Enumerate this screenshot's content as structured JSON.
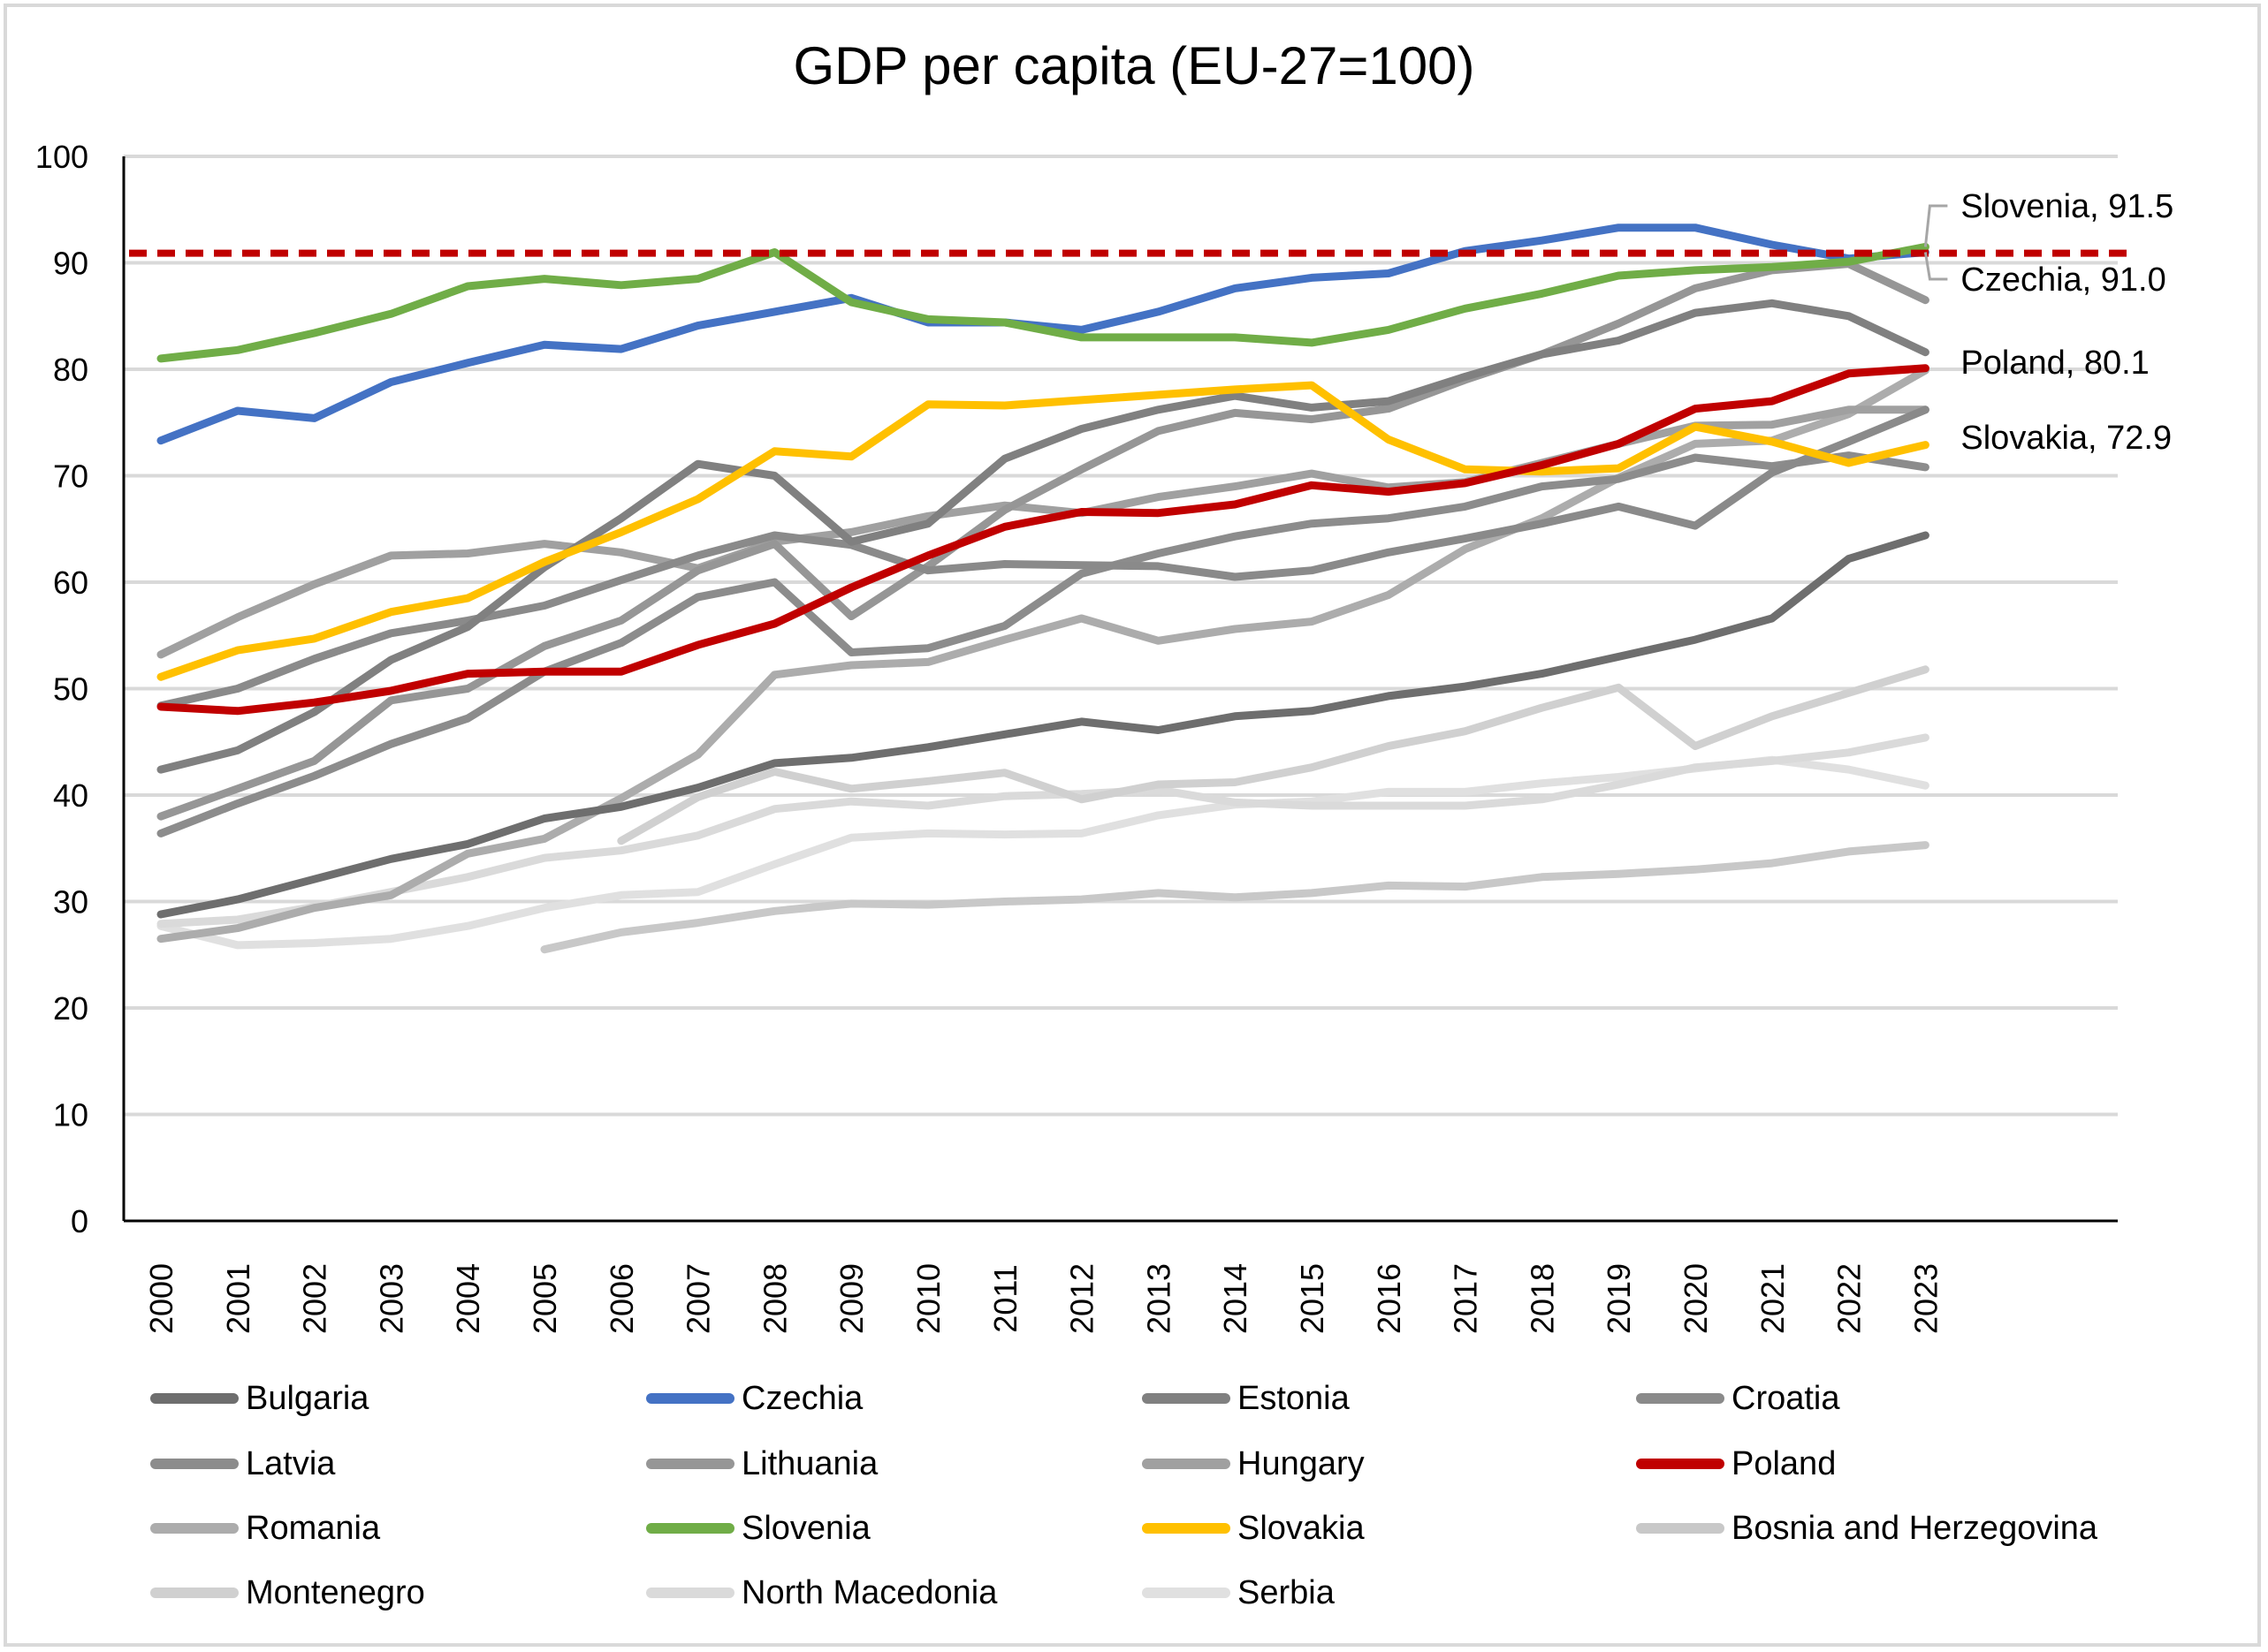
{
  "chart_data": {
    "type": "line",
    "title": "GDP per capita (EU-27=100)",
    "xlabel": "",
    "ylabel": "",
    "ylim": [
      0,
      100
    ],
    "yticks": [
      0,
      10,
      20,
      30,
      40,
      50,
      60,
      70,
      80,
      90,
      100
    ],
    "grid": true,
    "legend_position": "bottom",
    "x": [
      "2000",
      "2001",
      "2002",
      "2003",
      "2004",
      "2005",
      "2006",
      "2007",
      "2008",
      "2009",
      "2010",
      "2011",
      "2012",
      "2013",
      "2014",
      "2015",
      "2016",
      "2017",
      "2018",
      "2019",
      "2020",
      "2021",
      "2022",
      "2023"
    ],
    "reference_line": {
      "value": 90.9,
      "color": "#c00000",
      "style": "dashed"
    },
    "series": [
      {
        "name": "Bulgaria",
        "color": "#6e6e6e",
        "values": [
          28.8,
          30.2,
          32.1,
          34.0,
          35.4,
          37.8,
          38.9,
          40.7,
          43.0,
          43.5,
          44.5,
          45.7,
          46.9,
          46.1,
          47.4,
          47.9,
          49.3,
          50.2,
          51.4,
          53.0,
          54.6,
          56.6,
          62.2,
          64.4
        ]
      },
      {
        "name": "Czechia",
        "color": "#4472c4",
        "values": [
          73.3,
          76.1,
          75.4,
          78.8,
          80.6,
          82.3,
          81.9,
          84.1,
          85.4,
          86.7,
          84.4,
          84.4,
          83.7,
          85.4,
          87.6,
          88.6,
          89.0,
          91.1,
          92.1,
          93.3,
          93.3,
          91.7,
          90.4,
          91.0
        ]
      },
      {
        "name": "Estonia",
        "color": "#808080",
        "values": [
          42.4,
          44.2,
          47.8,
          52.7,
          55.8,
          61.4,
          66.0,
          71.1,
          70.0,
          63.8,
          65.5,
          71.6,
          74.4,
          76.2,
          77.5,
          76.4,
          77.0,
          79.3,
          81.4,
          82.7,
          85.3,
          86.2,
          85.0,
          81.6
        ]
      },
      {
        "name": "Croatia",
        "color": "#8a8a8a",
        "values": [
          48.4,
          50.0,
          52.8,
          55.2,
          56.4,
          57.8,
          60.2,
          62.5,
          64.4,
          63.5,
          61.1,
          61.7,
          61.6,
          61.5,
          60.5,
          61.1,
          62.8,
          64.1,
          65.5,
          67.1,
          65.3,
          70.3,
          73.2,
          76.2
        ]
      },
      {
        "name": "Latvia",
        "color": "#8c8c8c",
        "values": [
          36.4,
          39.2,
          41.8,
          44.8,
          47.2,
          51.6,
          54.3,
          58.6,
          60.0,
          53.4,
          53.8,
          55.9,
          60.8,
          62.7,
          64.3,
          65.5,
          66.0,
          67.1,
          69.0,
          69.7,
          71.7,
          70.9,
          71.9,
          70.8
        ]
      },
      {
        "name": "Lithuania",
        "color": "#969696",
        "values": [
          38.0,
          40.6,
          43.2,
          48.9,
          50.0,
          54.0,
          56.4,
          61.1,
          63.6,
          56.8,
          61.5,
          66.8,
          70.6,
          74.2,
          75.9,
          75.3,
          76.3,
          79.0,
          81.4,
          84.3,
          87.6,
          89.3,
          89.9,
          86.5
        ]
      },
      {
        "name": "Hungary",
        "color": "#a0a0a0",
        "values": [
          53.2,
          56.7,
          59.8,
          62.5,
          62.7,
          63.6,
          62.8,
          61.3,
          63.8,
          64.7,
          66.2,
          67.2,
          66.5,
          68.0,
          69.0,
          70.2,
          68.9,
          69.4,
          71.2,
          73.0,
          74.7,
          74.8,
          76.2,
          76.2
        ]
      },
      {
        "name": "Poland",
        "color": "#c00000",
        "values": [
          48.3,
          47.9,
          48.7,
          49.8,
          51.4,
          51.6,
          51.6,
          54.1,
          56.1,
          59.5,
          62.5,
          65.2,
          66.6,
          66.5,
          67.3,
          69.1,
          68.5,
          69.3,
          71.0,
          73.0,
          76.3,
          77.0,
          79.6,
          80.1
        ]
      },
      {
        "name": "Romania",
        "color": "#acacac",
        "values": [
          26.5,
          27.5,
          29.4,
          30.6,
          34.5,
          35.9,
          39.7,
          43.8,
          51.3,
          52.2,
          52.5,
          54.6,
          56.6,
          54.5,
          55.6,
          56.3,
          58.8,
          63.1,
          66.0,
          69.8,
          73.0,
          73.3,
          75.8,
          79.9
        ]
      },
      {
        "name": "Slovenia",
        "color": "#70ad47",
        "values": [
          81.0,
          81.8,
          83.4,
          85.2,
          87.8,
          88.5,
          87.9,
          88.5,
          91.0,
          86.3,
          84.7,
          84.4,
          83.0,
          83.0,
          83.0,
          82.5,
          83.7,
          85.7,
          87.1,
          88.8,
          89.3,
          89.6,
          90.1,
          91.5
        ]
      },
      {
        "name": "Slovakia",
        "color": "#ffc000",
        "values": [
          51.1,
          53.6,
          54.7,
          57.2,
          58.5,
          61.9,
          64.7,
          67.8,
          72.3,
          71.8,
          76.7,
          76.6,
          77.1,
          77.6,
          78.1,
          78.5,
          73.4,
          70.6,
          70.4,
          70.7,
          74.6,
          73.2,
          71.2,
          72.9
        ]
      },
      {
        "name": "Bosnia and Herzegovina",
        "color": "#c8c8c8",
        "values": [
          null,
          null,
          null,
          null,
          null,
          25.5,
          27.1,
          28.0,
          29.1,
          29.8,
          29.7,
          30.0,
          30.2,
          30.8,
          30.4,
          30.8,
          31.5,
          31.4,
          32.3,
          32.6,
          33.0,
          33.6,
          34.7,
          35.3
        ]
      },
      {
        "name": "Montenegro",
        "color": "#d0d0d0",
        "values": [
          null,
          null,
          null,
          null,
          null,
          null,
          35.7,
          39.8,
          42.2,
          40.6,
          41.3,
          42.1,
          39.6,
          41.0,
          41.2,
          42.6,
          44.6,
          46.0,
          48.2,
          50.1,
          44.6,
          47.4,
          49.6,
          51.8
        ]
      },
      {
        "name": "North Macedonia",
        "color": "#dadada",
        "values": [
          27.9,
          28.3,
          29.5,
          30.9,
          32.3,
          34.1,
          34.8,
          36.2,
          38.7,
          39.4,
          39.0,
          39.9,
          40.1,
          40.5,
          39.3,
          39.0,
          39.0,
          39.0,
          39.6,
          41.0,
          42.6,
          43.2,
          44.0,
          45.4
        ]
      },
      {
        "name": "Serbia",
        "color": "#e0e0e0",
        "values": [
          27.7,
          25.9,
          26.1,
          26.5,
          27.7,
          29.4,
          30.6,
          30.9,
          33.5,
          36.0,
          36.4,
          36.3,
          36.4,
          38.1,
          39.1,
          39.4,
          40.3,
          40.3,
          41.1,
          41.7,
          42.5,
          43.3,
          42.4,
          40.9
        ]
      }
    ],
    "annotations": [
      {
        "series": "Slovenia",
        "text": "Slovenia, 91.5"
      },
      {
        "series": "Czechia",
        "text": "Czechia, 91.0"
      },
      {
        "series": "Poland",
        "text": "Poland, 80.1"
      },
      {
        "series": "Slovakia",
        "text": "Slovakia, 72.9"
      }
    ],
    "legend_order": [
      "Bulgaria",
      "Czechia",
      "Estonia",
      "Croatia",
      "Latvia",
      "Lithuania",
      "Hungary",
      "Poland",
      "Romania",
      "Slovenia",
      "Slovakia",
      "Bosnia and Herzegovina",
      "Montenegro",
      "North Macedonia",
      "Serbia"
    ],
    "draw_order": [
      "Serbia",
      "North Macedonia",
      "Montenegro",
      "Bosnia and Herzegovina",
      "Romania",
      "Hungary",
      "Lithuania",
      "Latvia",
      "Croatia",
      "Estonia",
      "Bulgaria",
      "Slovakia",
      "Poland",
      "Czechia",
      "Slovenia"
    ]
  }
}
